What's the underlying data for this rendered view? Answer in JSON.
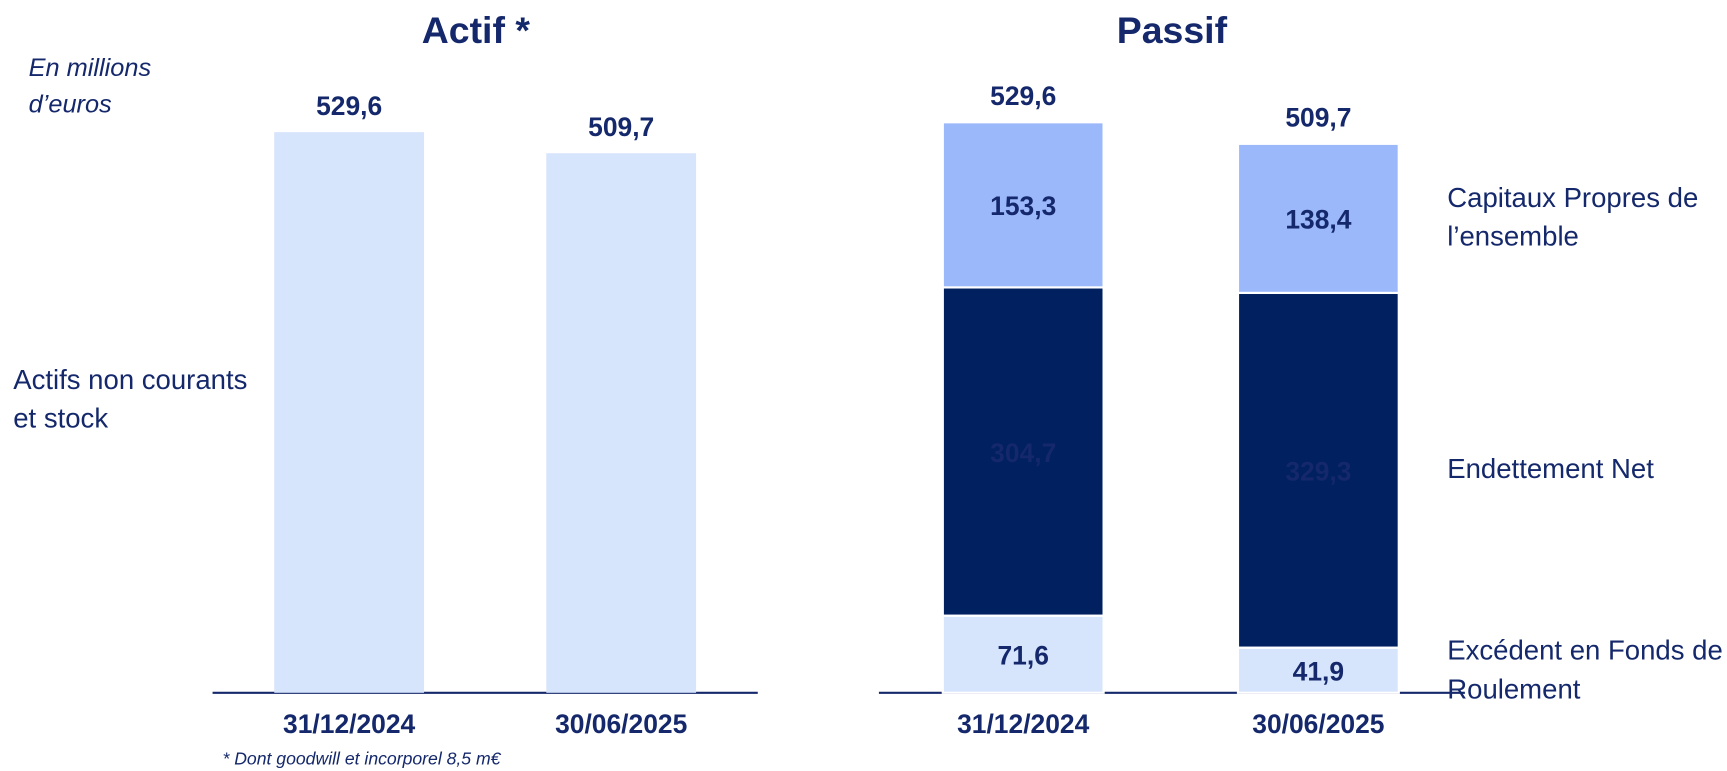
{
  "chart_data": [
    {
      "type": "bar",
      "title": "Actif *",
      "subtitle": "En millions d’euros",
      "categories": [
        "31/12/2024",
        "30/06/2025"
      ],
      "values": [
        529.6,
        509.7
      ],
      "value_labels": [
        "529,6",
        "509,7"
      ],
      "color": "#d6e4fc",
      "annotation": "Actifs non courants et stock",
      "note": "* Dont goodwill et incorporel 8,5 m€"
    },
    {
      "type": "stacked_bar",
      "title": "Passif",
      "categories": [
        "31/12/2024",
        "30/06/2025"
      ],
      "series": [
        {
          "name": "Excédent en Fonds de Roulement",
          "color": "#d6e4fc",
          "values": [
            71.6,
            41.9
          ],
          "value_labels": [
            "71,6",
            "41,9"
          ]
        },
        {
          "name": "Endettement Net",
          "color": "#002060",
          "values": [
            304.7,
            329.3
          ],
          "value_labels": [
            "304,7",
            "329,3"
          ]
        },
        {
          "name": "Capitaux Propres de l’ensemble",
          "color": "#9bb8fb",
          "values": [
            153.3,
            138.4
          ],
          "value_labels": [
            "153,3",
            "138,4"
          ]
        }
      ],
      "totals": [
        529.6,
        509.7
      ],
      "total_labels": [
        "529,6",
        "509,7"
      ]
    }
  ]
}
